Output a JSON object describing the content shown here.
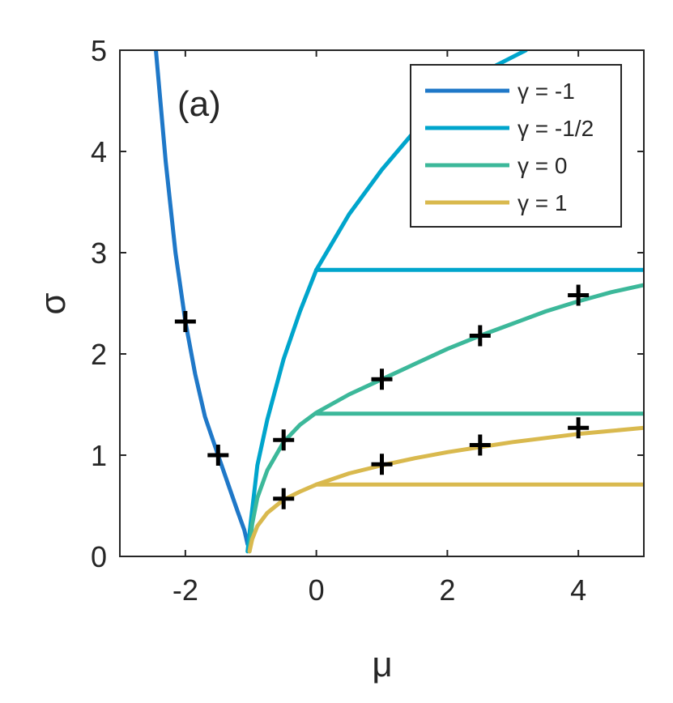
{
  "chart_data": {
    "type": "line",
    "panel_label": "(a)",
    "xlabel": "μ",
    "ylabel": "σ",
    "xlim": [
      -3,
      5
    ],
    "ylim": [
      0,
      5
    ],
    "xticks": [
      -2,
      0,
      2,
      4
    ],
    "yticks": [
      0,
      1,
      2,
      3,
      4,
      5
    ],
    "xtick_labels": [
      "-2",
      "0",
      "2",
      "4"
    ],
    "ytick_labels": [
      "0",
      "1",
      "2",
      "3",
      "4",
      "5"
    ],
    "grid": false,
    "legend_position": "top-right",
    "series": [
      {
        "name": "γ = -1",
        "color": "#1f78c8",
        "x": [
          -2.45,
          -2.3,
          -2.15,
          -2.0,
          -1.85,
          -1.7,
          -1.5,
          -1.35,
          -1.2,
          -1.1,
          -1.05
        ],
        "y": [
          5.0,
          3.9,
          3.0,
          2.32,
          1.8,
          1.38,
          1.0,
          0.72,
          0.44,
          0.26,
          0.12
        ]
      },
      {
        "name": "γ = -1/2",
        "color": "#00a5cc",
        "x": [
          -1.05,
          -1.0,
          -0.9,
          -0.75,
          -0.5,
          -0.25,
          0.0,
          0.5,
          1.0,
          1.5,
          2.0,
          2.5,
          3.2
        ],
        "y": [
          0.05,
          0.35,
          0.9,
          1.35,
          1.95,
          2.42,
          2.83,
          3.38,
          3.82,
          4.2,
          4.5,
          4.77,
          5.0
        ]
      },
      {
        "name": "",
        "color": "#00a5cc",
        "x": [
          0.0,
          5.0
        ],
        "y": [
          2.83,
          2.83
        ]
      },
      {
        "name": "γ = 0",
        "color": "#3cb89a",
        "x": [
          -1.02,
          -0.98,
          -0.9,
          -0.75,
          -0.5,
          -0.25,
          0.0,
          0.5,
          1.0,
          1.5,
          2.0,
          2.5,
          3.0,
          3.5,
          4.0,
          4.5,
          5.0
        ],
        "y": [
          0.05,
          0.32,
          0.58,
          0.85,
          1.13,
          1.3,
          1.42,
          1.6,
          1.75,
          1.9,
          2.05,
          2.18,
          2.3,
          2.42,
          2.52,
          2.61,
          2.68
        ]
      },
      {
        "name": "",
        "color": "#3cb89a",
        "x": [
          0.0,
          5.0
        ],
        "y": [
          1.41,
          1.41
        ]
      },
      {
        "name": "γ = 1",
        "color": "#d9b94e",
        "x": [
          -1.02,
          -0.98,
          -0.9,
          -0.75,
          -0.5,
          -0.25,
          0.0,
          0.5,
          1.0,
          1.5,
          2.0,
          2.5,
          3.0,
          3.5,
          4.0,
          4.5,
          5.0
        ],
        "y": [
          0.05,
          0.17,
          0.3,
          0.43,
          0.56,
          0.64,
          0.71,
          0.82,
          0.9,
          0.97,
          1.03,
          1.08,
          1.13,
          1.17,
          1.21,
          1.24,
          1.27
        ]
      },
      {
        "name": "",
        "color": "#d9b94e",
        "x": [
          0.0,
          5.0
        ],
        "y": [
          0.71,
          0.71
        ]
      }
    ],
    "markers": {
      "symbol": "+",
      "color": "#000000",
      "x": [
        -2.0,
        -1.5,
        -0.5,
        -0.5,
        1.0,
        1.0,
        2.5,
        2.5,
        4.0,
        4.0
      ],
      "y": [
        2.32,
        1.0,
        1.15,
        0.57,
        1.75,
        0.91,
        2.18,
        1.1,
        2.58,
        1.27
      ]
    }
  }
}
